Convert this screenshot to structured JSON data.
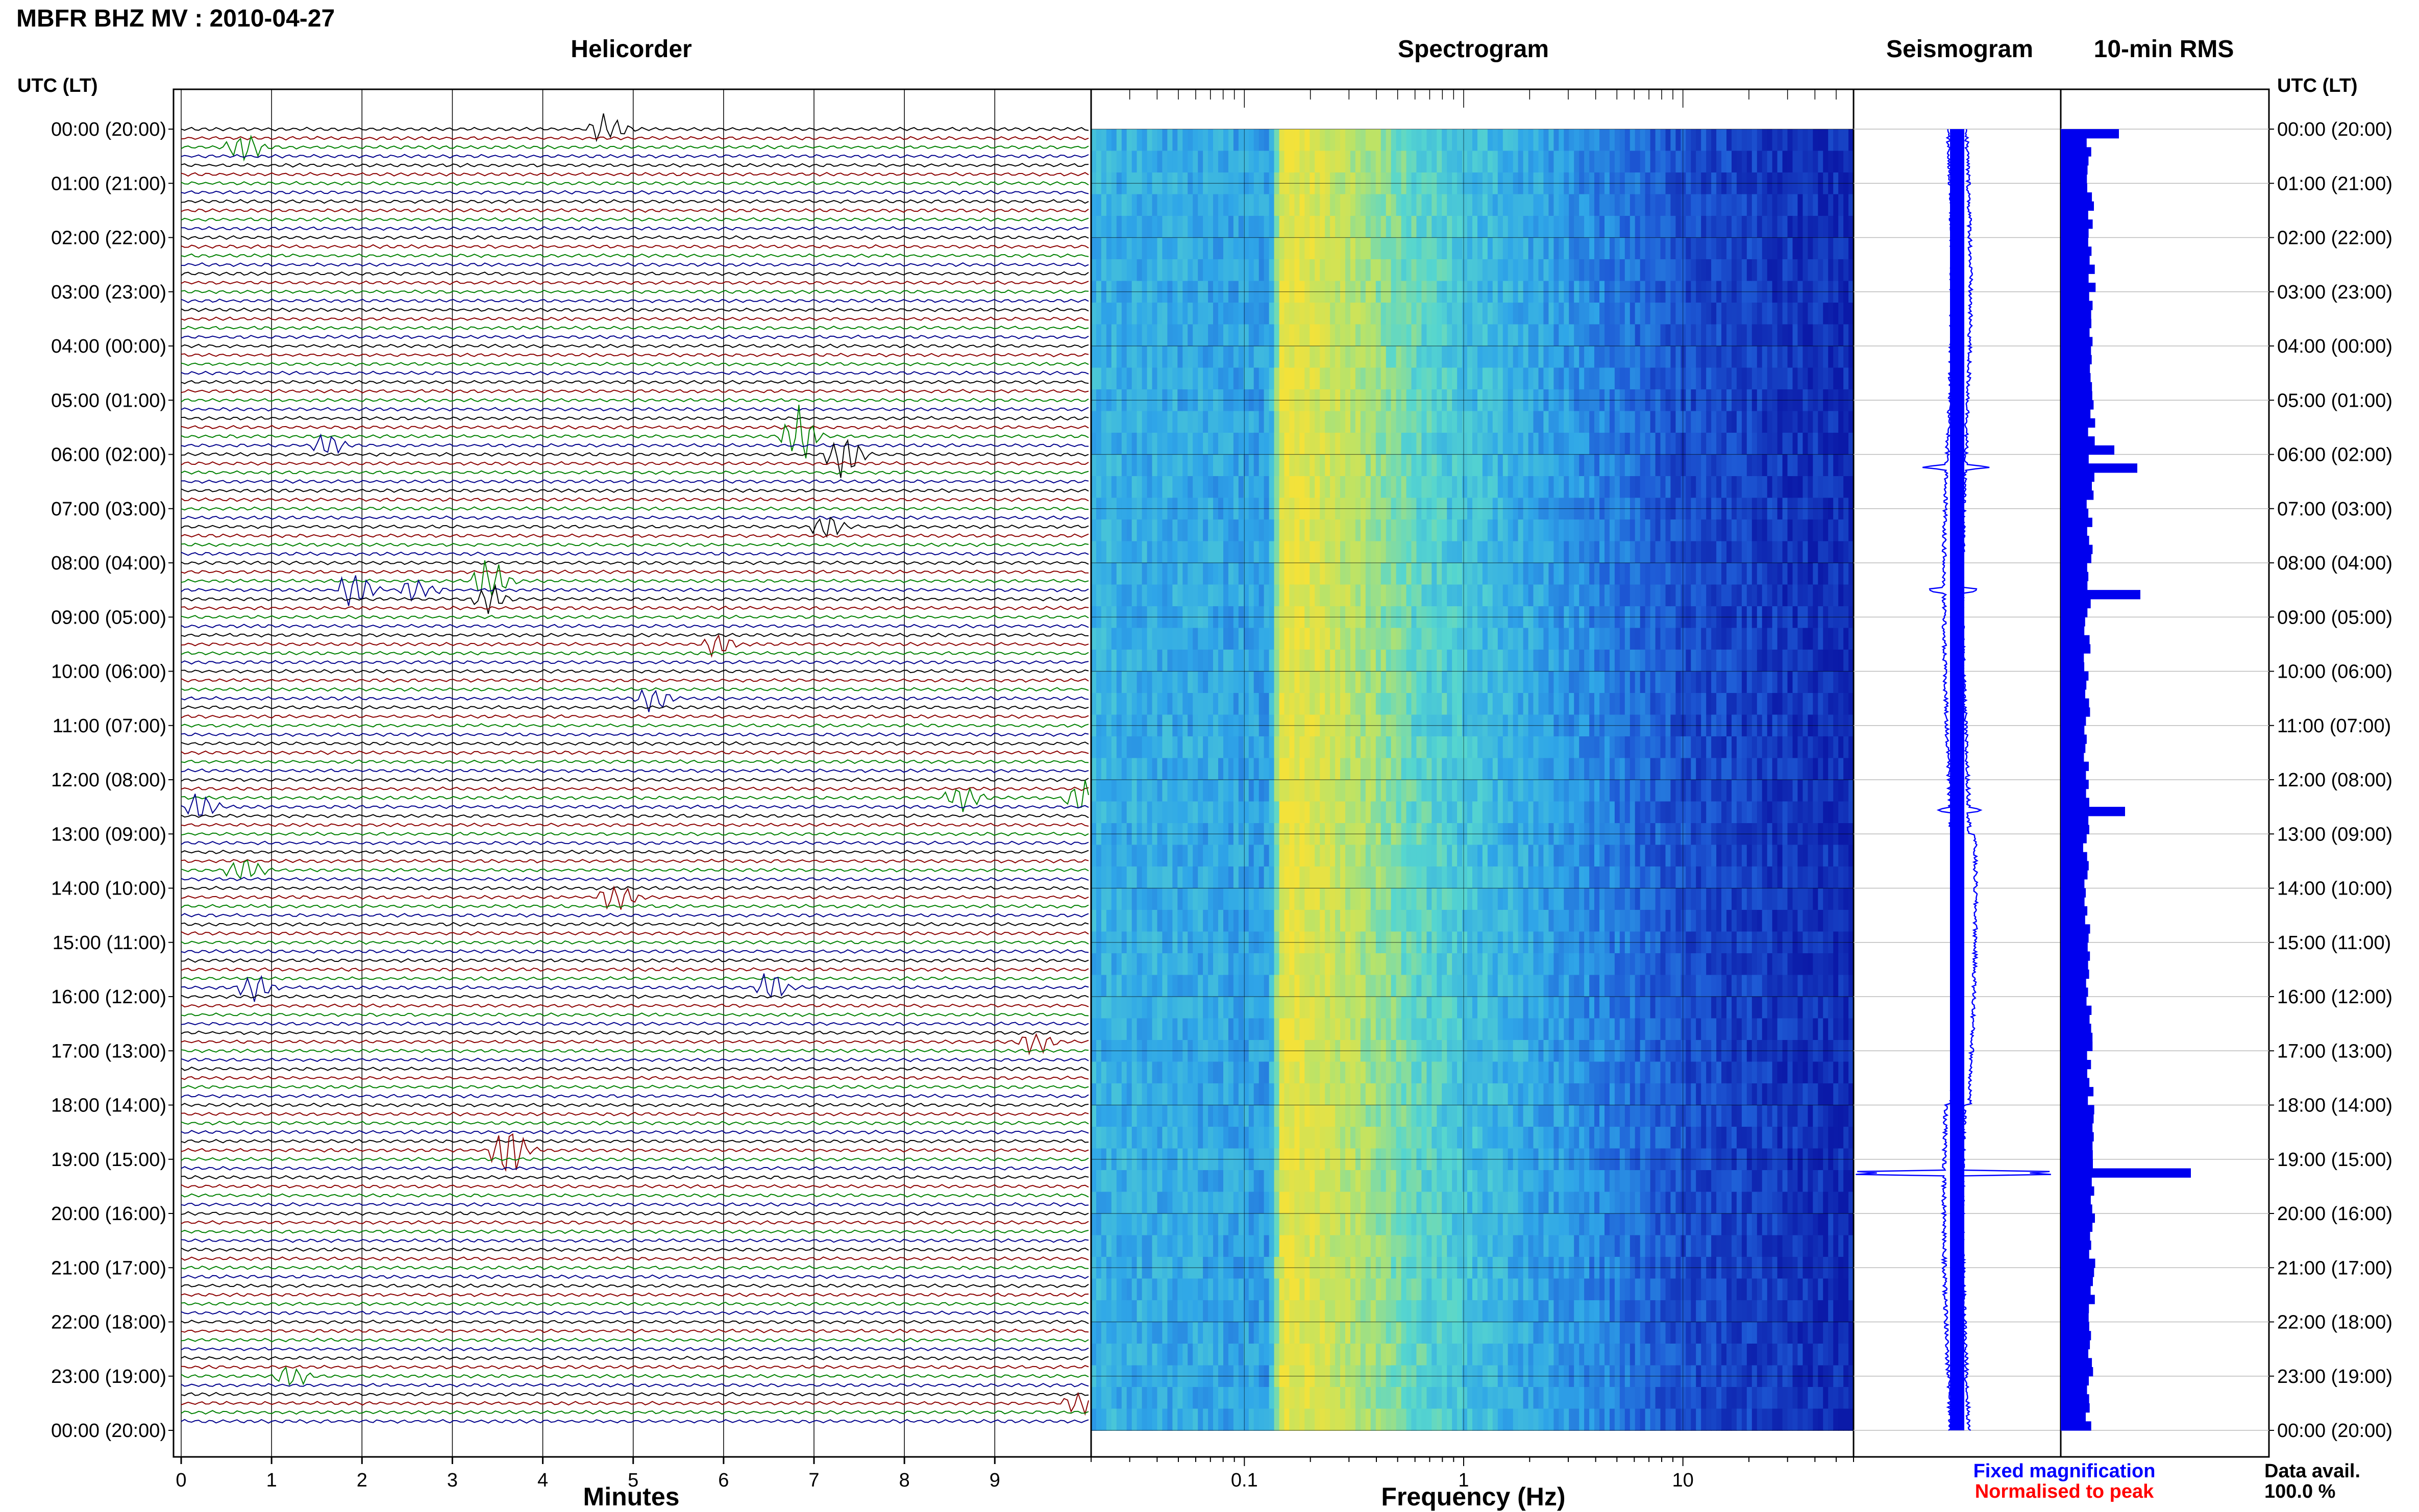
{
  "title": "MBFR BHZ MV : 2010-04-27",
  "headers": {
    "utc": "UTC (LT)",
    "helicorder": "Helicorder",
    "spectrogram": "Spectrogram",
    "seismogram": "Seismogram",
    "rms": "10-min RMS",
    "utc_right": "UTC (LT)"
  },
  "time_labels": [
    "00:00 (20:00)",
    "01:00 (21:00)",
    "02:00 (22:00)",
    "03:00 (23:00)",
    "04:00 (00:00)",
    "05:00 (01:00)",
    "06:00 (02:00)",
    "07:00 (03:00)",
    "08:00 (04:00)",
    "09:00 (05:00)",
    "10:00 (06:00)",
    "11:00 (07:00)",
    "12:00 (08:00)",
    "13:00 (09:00)",
    "14:00 (10:00)",
    "15:00 (11:00)",
    "16:00 (12:00)",
    "17:00 (13:00)",
    "18:00 (14:00)",
    "19:00 (15:00)",
    "20:00 (16:00)",
    "21:00 (17:00)",
    "22:00 (18:00)",
    "23:00 (19:00)",
    "00:00 (20:00)"
  ],
  "helicorder_axis": {
    "ticks": [
      "0",
      "1",
      "2",
      "3",
      "4",
      "5",
      "6",
      "7",
      "8",
      "9"
    ],
    "label": "Minutes"
  },
  "spectrogram_axis": {
    "ticks": [
      "0.1",
      "1",
      "10"
    ],
    "label": "Frequency (Hz)"
  },
  "legend": {
    "fixed": "Fixed magnification",
    "normalised": "Normalised to peak",
    "data_avail_label": "Data avail.",
    "data_avail_value": "100.0 %"
  },
  "colors": {
    "trace_cycle": [
      "#000000",
      "#8b0000",
      "#008000",
      "#00008b"
    ],
    "fixed": "#0000ff",
    "normalised": "#ff0000",
    "rms_bar": "#0000ee"
  },
  "chart_data": [
    {
      "type": "line",
      "panel": "helicorder",
      "x_unit": "minutes",
      "xlim": [
        0,
        10
      ],
      "rows_per_hour": 6,
      "events": [
        {
          "hour": 0.0,
          "minute": 4.6,
          "amp": 1.6
        },
        {
          "hour": 0.3,
          "minute": 0.6,
          "amp": 1.5
        },
        {
          "hour": 5.7,
          "minute": 6.7,
          "amp": 3.0
        },
        {
          "hour": 5.9,
          "minute": 1.5,
          "amp": 1.4
        },
        {
          "hour": 6.0,
          "minute": 7.2,
          "amp": 3.0
        },
        {
          "hour": 7.3,
          "minute": 7.0,
          "amp": 1.4
        },
        {
          "hour": 8.3,
          "minute": 3.3,
          "amp": 2.8
        },
        {
          "hour": 8.5,
          "minute": 1.8,
          "amp": 2.2
        },
        {
          "hour": 8.5,
          "minute": 2.5,
          "amp": 1.5
        },
        {
          "hour": 8.6,
          "minute": 3.3,
          "amp": 1.6
        },
        {
          "hour": 9.5,
          "minute": 5.8,
          "amp": 1.3
        },
        {
          "hour": 10.5,
          "minute": 5.1,
          "amp": 1.4
        },
        {
          "hour": 12.3,
          "minute": 9.8,
          "amp": 2.2
        },
        {
          "hour": 12.3,
          "minute": 8.5,
          "amp": 1.5
        },
        {
          "hour": 12.5,
          "minute": 0.1,
          "amp": 1.5
        },
        {
          "hour": 13.6,
          "minute": 0.6,
          "amp": 1.4
        },
        {
          "hour": 14.1,
          "minute": 4.7,
          "amp": 1.6
        },
        {
          "hour": 15.8,
          "minute": 6.4,
          "amp": 1.6
        },
        {
          "hour": 15.9,
          "minute": 0.7,
          "amp": 1.4
        },
        {
          "hour": 16.8,
          "minute": 9.3,
          "amp": 1.4
        },
        {
          "hour": 18.9,
          "minute": 3.5,
          "amp": 3.2
        },
        {
          "hour": 23.0,
          "minute": 1.1,
          "amp": 1.5
        },
        {
          "hour": 23.5,
          "minute": 9.8,
          "amp": 1.4
        }
      ]
    },
    {
      "type": "heatmap",
      "panel": "spectrogram",
      "x_scale": "log",
      "xlim": [
        0.02,
        60
      ],
      "xticks": [
        0.1,
        1,
        10
      ],
      "colormap": [
        "#0b1aa8",
        "#1e5bd6",
        "#2fa6e8",
        "#56d6cf",
        "#b8e36a",
        "#f3e23a"
      ],
      "profile": [
        {
          "hz": 0.02,
          "level": 0.45
        },
        {
          "hz": 0.06,
          "level": 0.42
        },
        {
          "hz": 0.1,
          "level": 0.4
        },
        {
          "hz": 0.13,
          "level": 0.38
        },
        {
          "hz": 0.15,
          "level": 0.98
        },
        {
          "hz": 0.3,
          "level": 0.82
        },
        {
          "hz": 0.6,
          "level": 0.62
        },
        {
          "hz": 1.0,
          "level": 0.52
        },
        {
          "hz": 2.0,
          "level": 0.42
        },
        {
          "hz": 5.0,
          "level": 0.28
        },
        {
          "hz": 10.0,
          "level": 0.16
        },
        {
          "hz": 60.0,
          "level": 0.04
        }
      ]
    },
    {
      "type": "line",
      "panel": "seismogram",
      "spikes": [
        {
          "hour": 6.25,
          "width": 0.3
        },
        {
          "hour": 8.5,
          "width": 0.2
        },
        {
          "hour": 12.55,
          "width": 0.2
        },
        {
          "hour": 19.25,
          "width": 0.95
        }
      ]
    },
    {
      "type": "bar",
      "panel": "10-min RMS",
      "orientation": "horizontal",
      "bins_per_hour": 6,
      "peaks": [
        {
          "hour": 0.0,
          "value": 0.38
        },
        {
          "hour": 5.85,
          "value": 0.35
        },
        {
          "hour": 6.2,
          "value": 0.5
        },
        {
          "hour": 8.5,
          "value": 0.52
        },
        {
          "hour": 12.5,
          "value": 0.42
        },
        {
          "hour": 19.2,
          "value": 0.85
        }
      ]
    }
  ]
}
